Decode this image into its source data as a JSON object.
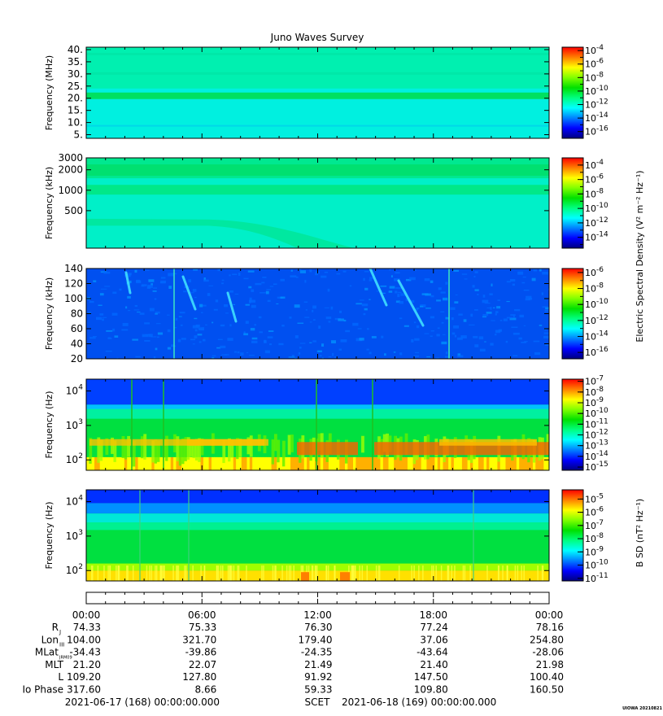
{
  "title": "Juno Waves Survey",
  "credit": "UIOWA 20210821",
  "scet_label": "SCET",
  "time_start": "2021-06-17 (168) 00:00:00.000",
  "time_end": "2021-06-18 (169) 00:00:00.000",
  "cbar_label_e": "Electric Spectral Density (V² m⁻² Hz⁻¹)",
  "cbar_label_b": "B SD (nT² Hz⁻¹)",
  "x_ticks": [
    "00:00",
    "06:00",
    "12:00",
    "18:00",
    "00:00"
  ],
  "ephemeris": [
    {
      "label": "R",
      "sub": "J",
      "values": [
        "74.33",
        "75.33",
        "76.30",
        "77.24",
        "78.16"
      ]
    },
    {
      "label": "Lon",
      "sub": "III",
      "values": [
        "104.00",
        "321.70",
        "179.40",
        "37.06",
        "254.80"
      ]
    },
    {
      "label": "MLat",
      "sub": "JRM09",
      "values": [
        "-34.43",
        "-39.86",
        "-24.35",
        "-43.64",
        "-28.06"
      ]
    },
    {
      "label": "MLT",
      "sub": "",
      "values": [
        "21.20",
        "22.07",
        "21.49",
        "21.40",
        "21.98"
      ]
    },
    {
      "label": "L",
      "sub": "",
      "values": [
        "109.20",
        "127.80",
        "91.92",
        "147.50",
        "100.40"
      ]
    },
    {
      "label": "Io Phase",
      "sub": "",
      "values": [
        "317.60",
        "8.66",
        "59.33",
        "109.80",
        "160.50"
      ]
    }
  ],
  "chart_data": [
    {
      "type": "heatmap",
      "ylabel": "Frequency (MHz)",
      "y_scale": "linear",
      "ylim": [
        3.5,
        41
      ],
      "y_ticks": [
        {
          "v": 5,
          "t": "5."
        },
        {
          "v": 10,
          "t": "10."
        },
        {
          "v": 15,
          "t": "15."
        },
        {
          "v": 20,
          "t": "20."
        },
        {
          "v": 25,
          "t": "25."
        },
        {
          "v": 30,
          "t": "30."
        },
        {
          "v": 35,
          "t": "35."
        },
        {
          "v": 40,
          "t": "40."
        }
      ],
      "colorbar": {
        "exponents": [
          -4,
          -6,
          -8,
          -10,
          -12,
          -14,
          -16
        ],
        "range": [
          -17,
          -3.5
        ]
      },
      "background_level": -13,
      "bands": [
        {
          "y": 21,
          "level": -11.5
        },
        {
          "y": 30,
          "level": -12.5
        },
        {
          "y": 38,
          "level": -12.3
        }
      ]
    },
    {
      "type": "heatmap",
      "ylabel": "Frequency (kHz)",
      "y_scale": "log",
      "ylim": [
        140,
        3000
      ],
      "y_ticks": [
        {
          "v": 500,
          "t": "500"
        },
        {
          "v": 1000,
          "t": "1000"
        },
        {
          "v": 2000,
          "t": "2000"
        },
        {
          "v": 3000,
          "t": "3000"
        }
      ],
      "colorbar": {
        "exponents": [
          -4,
          -6,
          -8,
          -10,
          -12,
          -14
        ],
        "range": [
          -15.5,
          -3
        ]
      },
      "background_level": -12.5,
      "bands": [
        {
          "y": 2200,
          "level": -11.2
        },
        {
          "y": 1100,
          "level": -11.5
        },
        {
          "y": 350,
          "level": -11.8
        }
      ]
    },
    {
      "type": "heatmap",
      "ylabel": "Frequency (kHz)",
      "y_scale": "linear",
      "ylim": [
        20,
        140
      ],
      "y_ticks": [
        {
          "v": 20,
          "t": "20"
        },
        {
          "v": 40,
          "t": "40"
        },
        {
          "v": 60,
          "t": "60"
        },
        {
          "v": 80,
          "t": "80"
        },
        {
          "v": 100,
          "t": "100"
        },
        {
          "v": 120,
          "t": "120"
        },
        {
          "v": 140,
          "t": "140"
        }
      ],
      "colorbar": {
        "exponents": [
          -6,
          -8,
          -10,
          -12,
          -14,
          -16
        ],
        "range": [
          -16.8,
          -5.5
        ]
      },
      "background_level": -14.5
    },
    {
      "type": "heatmap",
      "ylabel": "Frequency (Hz)",
      "y_scale": "log",
      "ylim": [
        50,
        22000
      ],
      "y_ticks": [
        {
          "v": 100,
          "t": "10",
          "sup": "2"
        },
        {
          "v": 1000,
          "t": "10",
          "sup": "3"
        },
        {
          "v": 10000,
          "t": "10",
          "sup": "4"
        }
      ],
      "colorbar": {
        "exponents": [
          -7,
          -8,
          -9,
          -10,
          -11,
          -12,
          -13,
          -14,
          -15
        ],
        "range": [
          -15.3,
          -6.8
        ]
      },
      "background_level": -11
    },
    {
      "type": "heatmap",
      "ylabel": "Frequency (Hz)",
      "y_scale": "log",
      "ylim": [
        50,
        22000
      ],
      "y_ticks": [
        {
          "v": 100,
          "t": "10",
          "sup": "2"
        },
        {
          "v": 1000,
          "t": "10",
          "sup": "3"
        },
        {
          "v": 10000,
          "t": "10",
          "sup": "4"
        }
      ],
      "colorbar": {
        "exponents": [
          -5,
          -6,
          -7,
          -8,
          -9,
          -10,
          -11
        ],
        "range": [
          -11.2,
          -4.3
        ]
      },
      "background_level": -8
    }
  ],
  "colors": {
    "background": "#ffffff",
    "text": "#000000",
    "spectrum": [
      "#00007f",
      "#0000ff",
      "#0080ff",
      "#00ffff",
      "#00ff80",
      "#00e000",
      "#80ff00",
      "#ffff00",
      "#ff8000",
      "#ff0000"
    ]
  }
}
